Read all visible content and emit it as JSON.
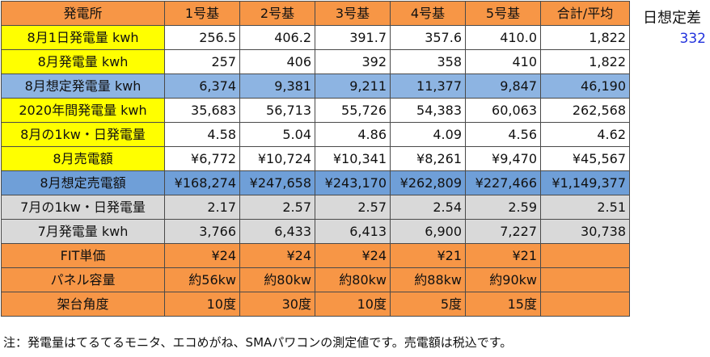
{
  "header": [
    "発電所",
    "1号基",
    "2号基",
    "3号基",
    "4号基",
    "5号基",
    "合計/平均"
  ],
  "rows": [
    {
      "style": "yellow",
      "label": "8月1日発電量 kwh",
      "values": [
        "256.5",
        "406.2",
        "391.7",
        "357.6",
        "410.0",
        "1,822"
      ]
    },
    {
      "style": "yellow",
      "label": "8月発電量 kwh",
      "values": [
        "257",
        "406",
        "392",
        "358",
        "410",
        "1,822"
      ]
    },
    {
      "style": "blue",
      "label": "8月想定発電量 kwh",
      "values": [
        "6,374",
        "9,381",
        "9,211",
        "11,377",
        "9,847",
        "46,190"
      ]
    },
    {
      "style": "yellow",
      "label": "2020年間発電量 kwh",
      "values": [
        "35,683",
        "56,713",
        "55,726",
        "54,383",
        "60,063",
        "262,568"
      ]
    },
    {
      "style": "yellow",
      "label": "8月の1kw・日発電量",
      "values": [
        "4.58",
        "5.04",
        "4.86",
        "4.09",
        "4.56",
        "4.62"
      ]
    },
    {
      "style": "yellow",
      "label": "8月売電額",
      "values": [
        "¥6,772",
        "¥10,724",
        "¥10,341",
        "¥8,261",
        "¥9,470",
        "¥45,567"
      ]
    },
    {
      "style": "blue2",
      "label": "8月想定売電額",
      "values": [
        "¥168,274",
        "¥247,658",
        "¥243,170",
        "¥262,809",
        "¥227,466",
        "¥1,149,377"
      ]
    },
    {
      "style": "gray",
      "label": "7月の1kw・日発電量",
      "values": [
        "2.17",
        "2.57",
        "2.57",
        "2.54",
        "2.59",
        "2.51"
      ]
    },
    {
      "style": "gray",
      "label": "7月発電量 kwh",
      "values": [
        "3,766",
        "6,433",
        "6,413",
        "6,900",
        "7,227",
        "30,738"
      ]
    },
    {
      "style": "orange",
      "label": "FIT単価",
      "values": [
        "¥24",
        "¥24",
        "¥24",
        "¥21",
        "¥21",
        ""
      ]
    },
    {
      "style": "orange",
      "label": "パネル容量",
      "values": [
        "約56kw",
        "約80kw",
        "約80kw",
        "約88kw",
        "約90kw",
        ""
      ]
    },
    {
      "style": "orange",
      "label": "架台角度",
      "values": [
        "10度",
        "30度",
        "10度",
        "5度",
        "15度",
        ""
      ]
    }
  ],
  "side": {
    "title": "日想定差",
    "value": "332"
  },
  "note": "注：発電量はてるてるモニタ、エコめがね、SMAパワコンの測定値です。売電額は税込です。"
}
